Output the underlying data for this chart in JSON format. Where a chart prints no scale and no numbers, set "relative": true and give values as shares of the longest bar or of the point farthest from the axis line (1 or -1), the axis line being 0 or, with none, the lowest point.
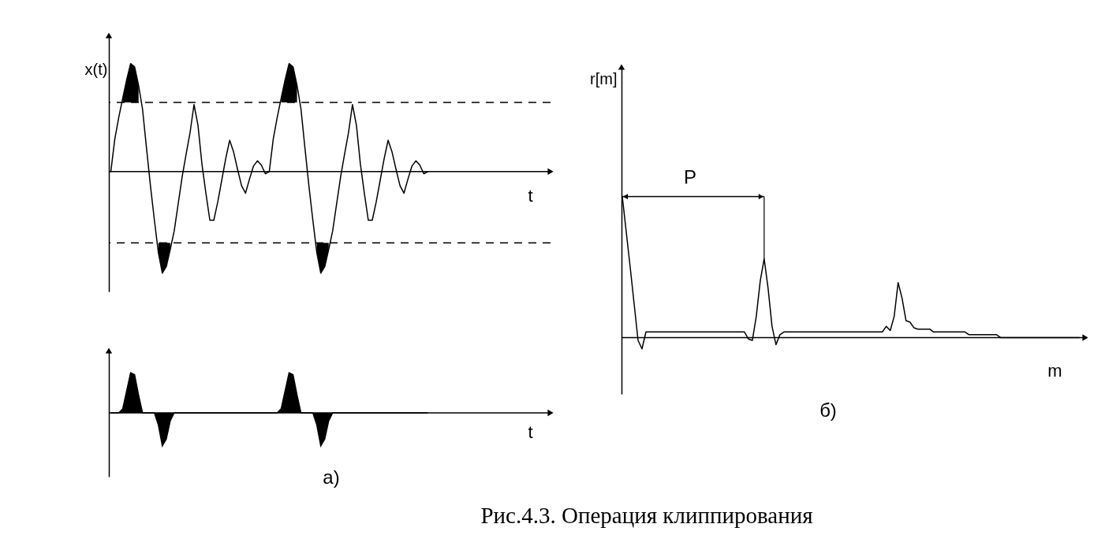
{
  "chart_data": [
    {
      "type": "line",
      "relative": true,
      "ylabel": "x(t)",
      "xlabel": "t",
      "categories": [
        null,
        null,
        null,
        null,
        null,
        null,
        null,
        null,
        null,
        null,
        null,
        null,
        null,
        null,
        null,
        null,
        null,
        null,
        null,
        null,
        null,
        null,
        null,
        null,
        null,
        null,
        null,
        null,
        null,
        null,
        null,
        null,
        null,
        null,
        null,
        null,
        null,
        null,
        null,
        null,
        null,
        null,
        null,
        null,
        null,
        null,
        null,
        null,
        null,
        null,
        null,
        null,
        null,
        null,
        null,
        null,
        null,
        null,
        null,
        null,
        null,
        null,
        null,
        null,
        null,
        null,
        null,
        null,
        null,
        null,
        null,
        null,
        null,
        null,
        null,
        null,
        null,
        null,
        null,
        null,
        null
      ],
      "series": [
        {
          "color": "#000000",
          "values": [
            0,
            0.3,
            0.5,
            0.68,
            0.85,
            1,
            0.97,
            0.8,
            0.58,
            0.22,
            -0.13,
            -0.45,
            -0.75,
            -0.94,
            -0.88,
            -0.72,
            -0.55,
            -0.3,
            -0.05,
            0.16,
            0.36,
            0.62,
            0.43,
            0.07,
            -0.2,
            -0.45,
            -0.45,
            -0.28,
            -0.08,
            0.12,
            0.29,
            0.18,
            0.02,
            -0.13,
            -0.2,
            -0.07,
            0.05,
            0.1,
            0.06,
            -0.02,
            0,
            0.3,
            0.5,
            0.68,
            0.85,
            1,
            0.97,
            0.8,
            0.58,
            0.22,
            -0.13,
            -0.45,
            -0.75,
            -0.94,
            -0.88,
            -0.72,
            -0.55,
            -0.3,
            -0.05,
            0.16,
            0.36,
            0.62,
            0.43,
            0.07,
            -0.2,
            -0.45,
            -0.45,
            -0.28,
            -0.08,
            0.12,
            0.29,
            0.18,
            0.02,
            -0.13,
            -0.2,
            -0.07,
            0.05,
            0.1,
            0.06,
            -0.02,
            0
          ],
          "lower": [
            null,
            null,
            null,
            0.64,
            0.64,
            0.64,
            0.64,
            0.64,
            null,
            null,
            null,
            null,
            -0.75,
            -0.94,
            -0.88,
            -0.72,
            null,
            null,
            null,
            null,
            null,
            null,
            null,
            null,
            null,
            null,
            null,
            null,
            null,
            null,
            null,
            null,
            null,
            null,
            null,
            null,
            null,
            null,
            null,
            null,
            null,
            null,
            null,
            0.64,
            0.64,
            0.64,
            0.64,
            0.64,
            null,
            null,
            null,
            null,
            -0.75,
            -0.94,
            -0.88,
            -0.72,
            null,
            null,
            null,
            null,
            null,
            null,
            null,
            null,
            null,
            null,
            null,
            null,
            null,
            null,
            null,
            null,
            null,
            null,
            null,
            null,
            null,
            null,
            null,
            null,
            null
          ],
          "upper": [
            null,
            null,
            null,
            0.68,
            0.85,
            1,
            0.97,
            0.8,
            null,
            null,
            null,
            null,
            -0.66,
            -0.66,
            -0.66,
            -0.66,
            null,
            null,
            null,
            null,
            null,
            null,
            null,
            null,
            null,
            null,
            null,
            null,
            null,
            null,
            null,
            null,
            null,
            null,
            null,
            null,
            null,
            null,
            null,
            null,
            null,
            null,
            null,
            0.68,
            0.85,
            1,
            0.97,
            0.8,
            null,
            null,
            null,
            null,
            -0.66,
            -0.66,
            -0.66,
            -0.66,
            null,
            null,
            null,
            null,
            null,
            null,
            null,
            null,
            null,
            null,
            null,
            null,
            null,
            null,
            null,
            null,
            null,
            null,
            null,
            null,
            null,
            null,
            null,
            null,
            null
          ]
        }
      ],
      "ref_lines": [
        {
          "axis": "y",
          "value": 0.64,
          "line_style": "dashed"
        },
        {
          "axis": "y",
          "value": -0.66,
          "line_style": "dashed"
        }
      ]
    },
    {
      "type": "line",
      "relative": true,
      "ylabel": "r[m]",
      "xlabel": "m",
      "annotations": [
        "P",
        "б)"
      ],
      "categories": [
        null,
        null,
        null,
        null,
        null,
        null,
        null,
        null,
        null,
        null,
        null,
        null,
        null,
        null,
        null,
        null,
        null,
        null,
        null,
        null,
        null,
        null,
        null,
        null,
        null,
        null,
        null,
        null,
        null,
        null,
        null,
        null,
        null,
        null,
        null,
        null,
        null,
        null,
        null,
        null,
        null,
        null,
        null,
        null,
        null,
        null,
        null,
        null,
        null,
        null,
        null,
        null,
        null,
        null,
        null,
        null,
        null,
        null,
        null,
        null,
        null,
        null,
        null,
        null,
        null,
        null,
        null,
        null,
        null,
        null,
        null,
        null,
        null,
        null,
        null,
        null,
        null,
        null,
        null,
        null,
        null,
        null,
        null,
        null,
        null,
        null,
        null,
        null,
        null,
        null,
        null,
        null,
        null,
        null,
        null,
        null,
        null,
        null,
        null,
        null,
        null,
        null,
        null,
        null,
        null,
        null,
        null,
        null,
        null,
        null,
        null,
        null,
        null,
        null,
        null,
        null,
        null
      ],
      "series": [
        {
          "color": "#000000",
          "values": [
            1,
            0.75,
            0.5,
            0.24,
            -0.02,
            -0.08,
            0.04,
            0.04,
            0.04,
            0.04,
            0.04,
            0.04,
            0.04,
            0.04,
            0.04,
            0.04,
            0.04,
            0.04,
            0.04,
            0.04,
            0.04,
            0.04,
            0.04,
            0.04,
            0.04,
            0.04,
            0.04,
            0.04,
            0.04,
            0.04,
            0.04,
            0.04,
            -0.01,
            -0.02,
            0.15,
            0.4,
            0.56,
            0.35,
            0.08,
            -0.05,
            0.02,
            0.04,
            0.04,
            0.04,
            0.04,
            0.04,
            0.04,
            0.04,
            0.04,
            0.04,
            0.04,
            0.04,
            0.04,
            0.04,
            0.04,
            0.04,
            0.04,
            0.04,
            0.04,
            0.04,
            0.04,
            0.04,
            0.04,
            0.04,
            0.04,
            0.04,
            0.04,
            0.08,
            0.05,
            0.15,
            0.39,
            0.28,
            0.12,
            0.11,
            0.07,
            0.06,
            0.06,
            0.06,
            0.06,
            0.04,
            0.04,
            0.04,
            0.04,
            0.04,
            0.04,
            0.04,
            0.04,
            0.04,
            0.02,
            0.02,
            0.02,
            0.02,
            0.02,
            0.02,
            0.02,
            0.02,
            0,
            0,
            0,
            0,
            0,
            0,
            0,
            0,
            0,
            0,
            0,
            0,
            0,
            0,
            0,
            0,
            0,
            0,
            0,
            0,
            0
          ]
        }
      ]
    },
    {
      "type": "area",
      "relative": true,
      "xlabel": "t",
      "annotations": [
        "а)",
        "Рис.4.3. Операция клиппирования"
      ],
      "categories": [
        null,
        null,
        null,
        null,
        null,
        null,
        null,
        null,
        null,
        null,
        null,
        null,
        null,
        null,
        null,
        null,
        null,
        null,
        null,
        null,
        null,
        null,
        null,
        null,
        null,
        null,
        null,
        null,
        null,
        null,
        null,
        null,
        null,
        null,
        null,
        null,
        null,
        null,
        null,
        null,
        null,
        null,
        null,
        null,
        null,
        null,
        null,
        null,
        null,
        null,
        null,
        null,
        null,
        null,
        null,
        null,
        null,
        null,
        null,
        null,
        null,
        null,
        null,
        null,
        null,
        null,
        null,
        null,
        null,
        null,
        null,
        null,
        null,
        null,
        null,
        null,
        null,
        null,
        null,
        null,
        null
      ],
      "series": [
        {
          "color": "#000000",
          "values": [
            0,
            0,
            0,
            0.1,
            0.55,
            1,
            0.95,
            0.45,
            0,
            0,
            0,
            0,
            -0.3,
            -0.82,
            -0.65,
            -0.2,
            0,
            0,
            0,
            0,
            0,
            0,
            0,
            0,
            0,
            0,
            0,
            0,
            0,
            0,
            0,
            0,
            0,
            0,
            0,
            0,
            0,
            0,
            0,
            0,
            0,
            0,
            0,
            0.1,
            0.55,
            1,
            0.95,
            0.45,
            0,
            0,
            0,
            0,
            -0.3,
            -0.82,
            -0.65,
            -0.2,
            0,
            0,
            0,
            0,
            0,
            0,
            0,
            0,
            0,
            0,
            0,
            0,
            0,
            0,
            0,
            0,
            0,
            0,
            0,
            0,
            0,
            0,
            0,
            0,
            0
          ]
        }
      ]
    }
  ]
}
